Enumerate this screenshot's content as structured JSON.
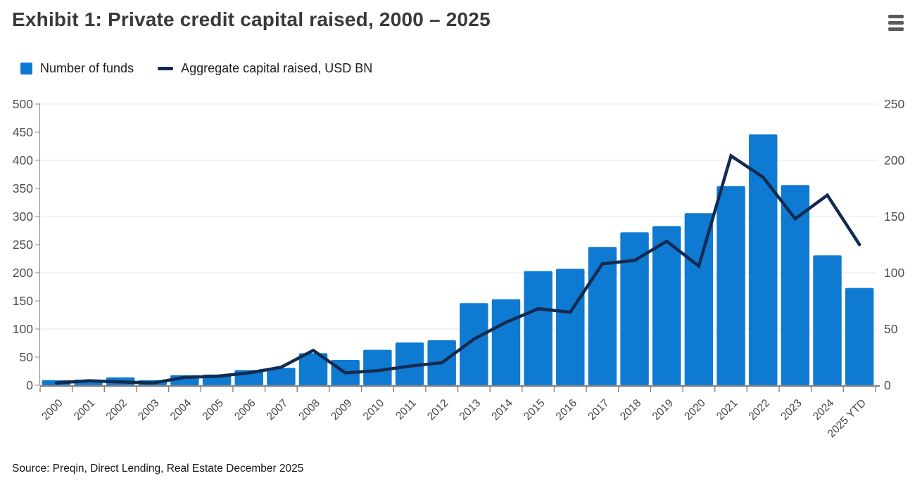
{
  "header": {
    "title": "Exhibit 1: Private credit capital raised, 2000 – 2025",
    "menu_icon": "hamburger-menu-icon"
  },
  "legend": {
    "items": [
      {
        "label": "Number of funds",
        "type": "bar",
        "swatch_color": "#0f7ad1"
      },
      {
        "label": "Aggregate capital raised, USD BN",
        "type": "line",
        "swatch_color": "#122b50"
      }
    ]
  },
  "chart_data": {
    "type": "bar",
    "subtype": "bar-line-combo",
    "title": "Exhibit 1: Private credit capital raised, 2000 – 2025",
    "categories": [
      "2000",
      "2001",
      "2002",
      "2003",
      "2004",
      "2005",
      "2006",
      "2007",
      "2008",
      "2009",
      "2010",
      "2011",
      "2012",
      "2013",
      "2014",
      "2015",
      "2016",
      "2017",
      "2018",
      "2019",
      "2020",
      "2021",
      "2022",
      "2023",
      "2024",
      "2025 YTD"
    ],
    "series": [
      {
        "name": "Number of funds",
        "type": "bar",
        "axis": "left",
        "color": "#0f7ad1",
        "values": [
          9,
          10,
          14,
          9,
          18,
          19,
          27,
          31,
          57,
          45,
          63,
          76,
          80,
          146,
          153,
          203,
          207,
          246,
          272,
          283,
          306,
          354,
          446,
          356,
          231,
          173
        ]
      },
      {
        "name": "Aggregate capital raised, USD BN",
        "type": "line",
        "axis": "right",
        "color": "#122b50",
        "values": [
          2,
          4,
          3,
          2,
          7,
          8,
          11,
          16,
          31,
          11,
          13,
          17,
          20,
          41,
          56,
          68,
          65,
          108,
          111,
          128,
          106,
          204,
          185,
          148,
          169,
          125
        ]
      }
    ],
    "left_axis": {
      "min": 0,
      "max": 500,
      "tick_step": 50,
      "tick_labels": [
        "0",
        "50",
        "100",
        "150",
        "200",
        "250",
        "300",
        "350",
        "400",
        "450",
        "500"
      ]
    },
    "right_axis": {
      "min": 0,
      "max": 250,
      "tick_step": 50,
      "tick_labels": [
        "0",
        "50",
        "100",
        "150",
        "200",
        "250"
      ]
    },
    "gridlines_left_values": [
      100,
      200,
      300,
      400,
      500
    ],
    "grid": "horizontal",
    "legend_position": "top-left",
    "x_label_rotation": -45
  },
  "footer": {
    "source": "Source: Preqin, Direct Lending, Real Estate December 2025"
  }
}
